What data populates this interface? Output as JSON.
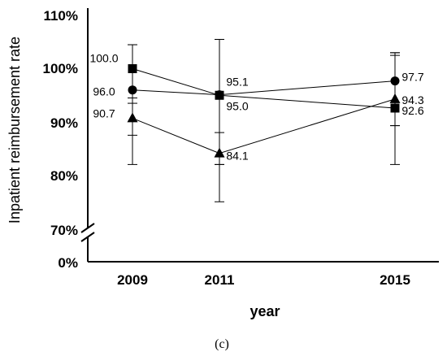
{
  "chart_data": {
    "type": "line",
    "xlabel": "year",
    "ylabel": "Inpatient reimbursement rate",
    "caption": "(c)",
    "x": [
      "2009",
      "2011",
      "2015"
    ],
    "y_ticks": [
      "110%",
      "100%",
      "90%",
      "80%",
      "70%",
      "0%"
    ],
    "axis_break": true,
    "grid": false,
    "legend": "none",
    "ylim": [
      70,
      110
    ],
    "series": [
      {
        "marker": "square",
        "values": [
          100.0,
          95.0,
          92.6
        ],
        "labels": [
          "100.0",
          "95.0",
          "92.6"
        ],
        "error_bars": [
          [
            94.5,
            104.5
          ],
          [
            82.0,
            105.5
          ],
          [
            89.3,
            102.5
          ]
        ]
      },
      {
        "marker": "circle",
        "values": [
          96.0,
          95.1,
          97.7
        ],
        "labels": [
          "96.0",
          "95.1",
          "97.7"
        ],
        "error_bars": [
          [
            82.0,
            104.5
          ],
          [
            82.0,
            105.5
          ],
          [
            82.0,
            103.0
          ]
        ]
      },
      {
        "marker": "triangle",
        "values": [
          90.7,
          84.1,
          94.3
        ],
        "labels": [
          "90.7",
          "84.1",
          "94.3"
        ],
        "error_bars": [
          [
            87.5,
            93.5
          ],
          [
            75.0,
            88.0
          ],
          [
            89.3,
            103.0
          ]
        ]
      }
    ]
  }
}
